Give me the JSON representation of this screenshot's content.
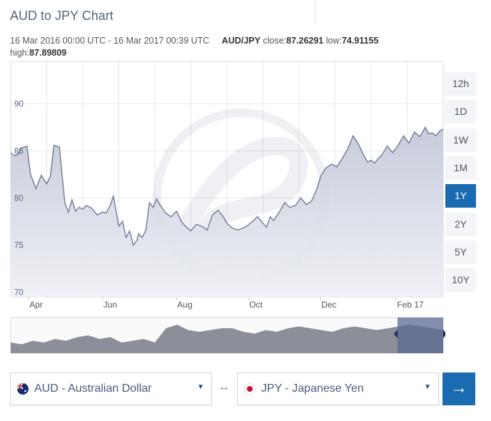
{
  "title": "AUD to JPY Chart",
  "info": {
    "range": "16 Mar 2016 00:00 UTC - 16 Mar 2017 00:39 UTC",
    "symbol": "AUD/JPY",
    "close_label": "close:",
    "close": "87.26291",
    "low_label": "low:",
    "low": "74.91155",
    "high_label": "high:",
    "high": "87.89809"
  },
  "ranges": [
    "12h",
    "1D",
    "1W",
    "1M",
    "1Y",
    "2Y",
    "5Y",
    "10Y"
  ],
  "active_range": "1Y",
  "from_currency": {
    "label": "AUD - Australian Dollar",
    "icon": "australia-flag-icon"
  },
  "to_currency": {
    "label": "JPY - Japanese Yen",
    "icon": "japan-flag-icon"
  },
  "swap_symbol": "↔",
  "go_symbol": "→",
  "colors": {
    "accent": "#1b6bb0",
    "line": "#6e7a97",
    "fill": "#d8dbe6",
    "navigator": "#8c8f99",
    "nav_selection": "#5a6a90"
  },
  "chart_data": {
    "type": "area",
    "series_name": "AUD/JPY",
    "x_unit": "month index (0 = 16 Mar 2016)",
    "x": [
      0,
      0.1,
      0.2,
      0.3,
      0.45,
      0.55,
      0.7,
      0.85,
      1.0,
      1.1,
      1.2,
      1.35,
      1.5,
      1.6,
      1.7,
      1.8,
      1.9,
      2.0,
      2.1,
      2.25,
      2.4,
      2.55,
      2.65,
      2.75,
      2.85,
      3.0,
      3.1,
      3.2,
      3.3,
      3.4,
      3.5,
      3.55,
      3.65,
      3.75,
      3.85,
      3.95,
      4.05,
      4.15,
      4.3,
      4.45,
      4.6,
      4.75,
      4.9,
      5.0,
      5.15,
      5.3,
      5.45,
      5.6,
      5.75,
      5.9,
      6.0,
      6.15,
      6.3,
      6.45,
      6.55,
      6.7,
      6.85,
      7.0,
      7.1,
      7.2,
      7.3,
      7.45,
      7.6,
      7.75,
      7.9,
      8.05,
      8.2,
      8.35,
      8.5,
      8.6,
      8.75,
      8.9,
      9.05,
      9.2,
      9.35,
      9.5,
      9.65,
      9.8,
      9.9,
      10.0,
      10.1,
      10.2,
      10.3,
      10.45,
      10.6,
      10.75,
      10.9,
      11.05,
      11.2,
      11.35,
      11.5,
      11.6,
      11.7,
      11.8,
      11.9,
      12.0
    ],
    "y": [
      84.8,
      84.5,
      84.6,
      85.3,
      85.5,
      82.5,
      81.0,
      82.4,
      81.5,
      82.3,
      85.6,
      85.4,
      79.5,
      78.5,
      79.8,
      78.6,
      79.0,
      78.8,
      79.2,
      78.9,
      78.2,
      78.5,
      78.4,
      79.1,
      80.2,
      77.0,
      77.5,
      75.8,
      76.5,
      75.0,
      75.5,
      76.2,
      75.8,
      76.6,
      79.5,
      79.0,
      79.9,
      79.2,
      78.4,
      78.0,
      78.6,
      77.4,
      76.8,
      76.5,
      77.2,
      77.0,
      76.6,
      78.2,
      78.7,
      78.0,
      77.3,
      76.8,
      76.6,
      76.8,
      77.0,
      77.5,
      78.0,
      77.3,
      76.9,
      78.0,
      77.6,
      78.5,
      79.5,
      79.0,
      79.2,
      80.0,
      79.3,
      79.7,
      81.0,
      82.3,
      83.2,
      83.6,
      83.3,
      84.2,
      85.2,
      86.6,
      85.7,
      84.5,
      83.8,
      84.0,
      83.7,
      84.2,
      84.6,
      85.5,
      84.8,
      85.6,
      86.6,
      85.8,
      87.0,
      86.5,
      87.5,
      86.8,
      86.9,
      86.6,
      87.1,
      87.3
    ],
    "x_ticks": [
      {
        "label": "Apr",
        "x": 0.5
      },
      {
        "label": "Jun",
        "x": 2.55
      },
      {
        "label": "Aug",
        "x": 4.6
      },
      {
        "label": "Oct",
        "x": 6.6
      },
      {
        "label": "Dec",
        "x": 8.6
      },
      {
        "label": "Feb 17",
        "x": 10.7
      }
    ],
    "y_ticks": [
      70,
      75,
      80,
      85,
      90
    ],
    "xlim": [
      0,
      12
    ],
    "ylim": [
      69.5,
      94.5
    ],
    "grid": true
  }
}
